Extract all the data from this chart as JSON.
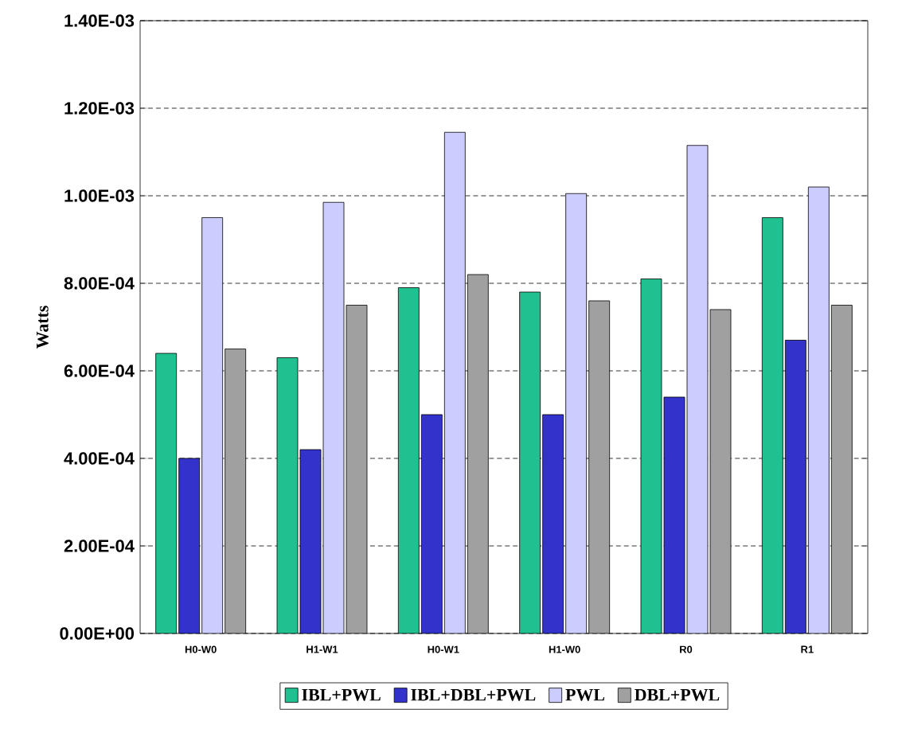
{
  "chart_data": {
    "type": "bar",
    "ylabel": "Watts",
    "categories": [
      "H0-W0",
      "H1-W1",
      "H0-W1",
      "H1-W0",
      "R0",
      "R1"
    ],
    "series": [
      {
        "name": "IBL+PWL",
        "color": "#20c090",
        "values": [
          0.00064,
          0.00063,
          0.00079,
          0.00078,
          0.00081,
          0.00095
        ]
      },
      {
        "name": "IBL+DBL+PWL",
        "color": "#3333cc",
        "values": [
          0.0004,
          0.00042,
          0.0005,
          0.0005,
          0.00054,
          0.00067
        ]
      },
      {
        "name": "PWL",
        "color": "#ccccff",
        "values": [
          0.00095,
          0.000985,
          0.001145,
          0.001005,
          0.001115,
          0.00102
        ]
      },
      {
        "name": "DBL+PWL",
        "color": "#a0a0a0",
        "values": [
          0.00065,
          0.00075,
          0.00082,
          0.00076,
          0.00074,
          0.00075
        ]
      }
    ],
    "ylim": [
      0,
      0.0014
    ],
    "yticks": [
      {
        "value": 0,
        "label": "0.00E+00"
      },
      {
        "value": 0.0002,
        "label": "2.00E-04"
      },
      {
        "value": 0.0004,
        "label": "4.00E-04"
      },
      {
        "value": 0.0006,
        "label": "6.00E-04"
      },
      {
        "value": 0.0008,
        "label": "8.00E-04"
      },
      {
        "value": 0.001,
        "label": "1.00E-03"
      },
      {
        "value": 0.0012,
        "label": "1.20E-03"
      },
      {
        "value": 0.0014,
        "label": "1.40E-03"
      }
    ],
    "grid": "y",
    "legend": "bottom"
  }
}
